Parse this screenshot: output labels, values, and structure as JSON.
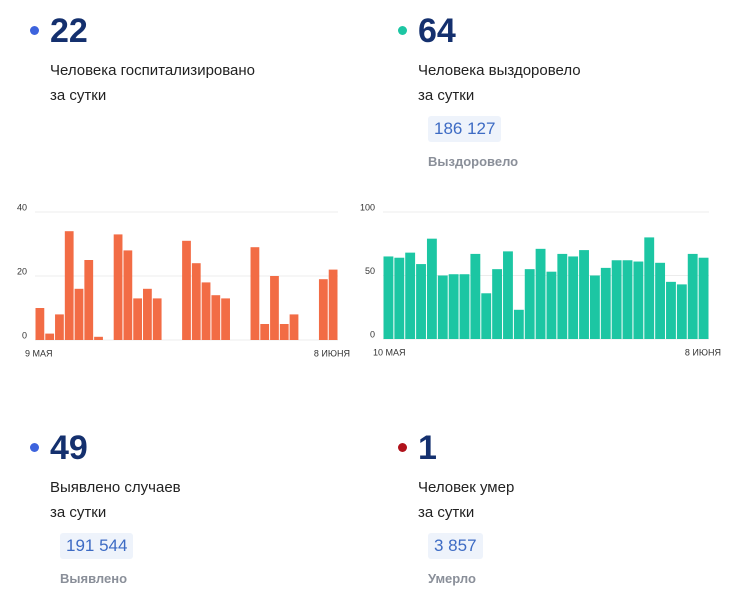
{
  "cards": [
    {
      "number": "22",
      "lines": [
        "Человека госпитализировано",
        "за сутки"
      ],
      "dot": "#3d63dd"
    },
    {
      "number": "64",
      "lines": [
        "Человека выздоровело",
        "за сутки"
      ],
      "total": "186 127",
      "total_label": "Выздоровело",
      "dot": "#1cc6a3"
    },
    {
      "number": "49",
      "lines": [
        "Выявлено случаев",
        "за сутки"
      ],
      "total": "191 544",
      "total_label": "Выявлено",
      "dot": "#3d63dd"
    },
    {
      "number": "1",
      "lines": [
        "Человек умер",
        "за сутки"
      ],
      "total": "3 857",
      "total_label": "Умерло",
      "dot": "#b0121b"
    }
  ],
  "chart_data": [
    {
      "type": "bar",
      "color": "#f26c45",
      "grid": true,
      "ylim": [
        0,
        40
      ],
      "yticks": [
        0,
        20,
        40
      ],
      "categories": [
        "9 МАЯ",
        null,
        null,
        null,
        null,
        null,
        null,
        null,
        null,
        null,
        null,
        null,
        null,
        null,
        null,
        null,
        null,
        null,
        null,
        null,
        null,
        null,
        null,
        null,
        null,
        null,
        null,
        null,
        null,
        null,
        "8 ИЮНЯ"
      ],
      "values": [
        10,
        2,
        8,
        34,
        16,
        25,
        1,
        0,
        33,
        28,
        13,
        16,
        13,
        0,
        0,
        31,
        24,
        18,
        14,
        13,
        0,
        0,
        29,
        5,
        20,
        5,
        8,
        0,
        0,
        19,
        22
      ]
    },
    {
      "type": "bar",
      "color": "#1cc6a3",
      "grid": true,
      "ylim": [
        0,
        100
      ],
      "yticks": [
        0,
        50,
        100
      ],
      "categories": [
        "10 МАЯ",
        null,
        null,
        null,
        null,
        null,
        null,
        null,
        null,
        null,
        null,
        null,
        null,
        null,
        null,
        null,
        null,
        null,
        null,
        null,
        null,
        null,
        null,
        null,
        null,
        null,
        null,
        null,
        null,
        "8 ИЮНЯ"
      ],
      "values": [
        65,
        64,
        68,
        59,
        79,
        50,
        51,
        51,
        67,
        36,
        55,
        69,
        23,
        55,
        71,
        53,
        67,
        65,
        70,
        50,
        56,
        62,
        62,
        61,
        80,
        60,
        45,
        43,
        67,
        64
      ]
    }
  ]
}
